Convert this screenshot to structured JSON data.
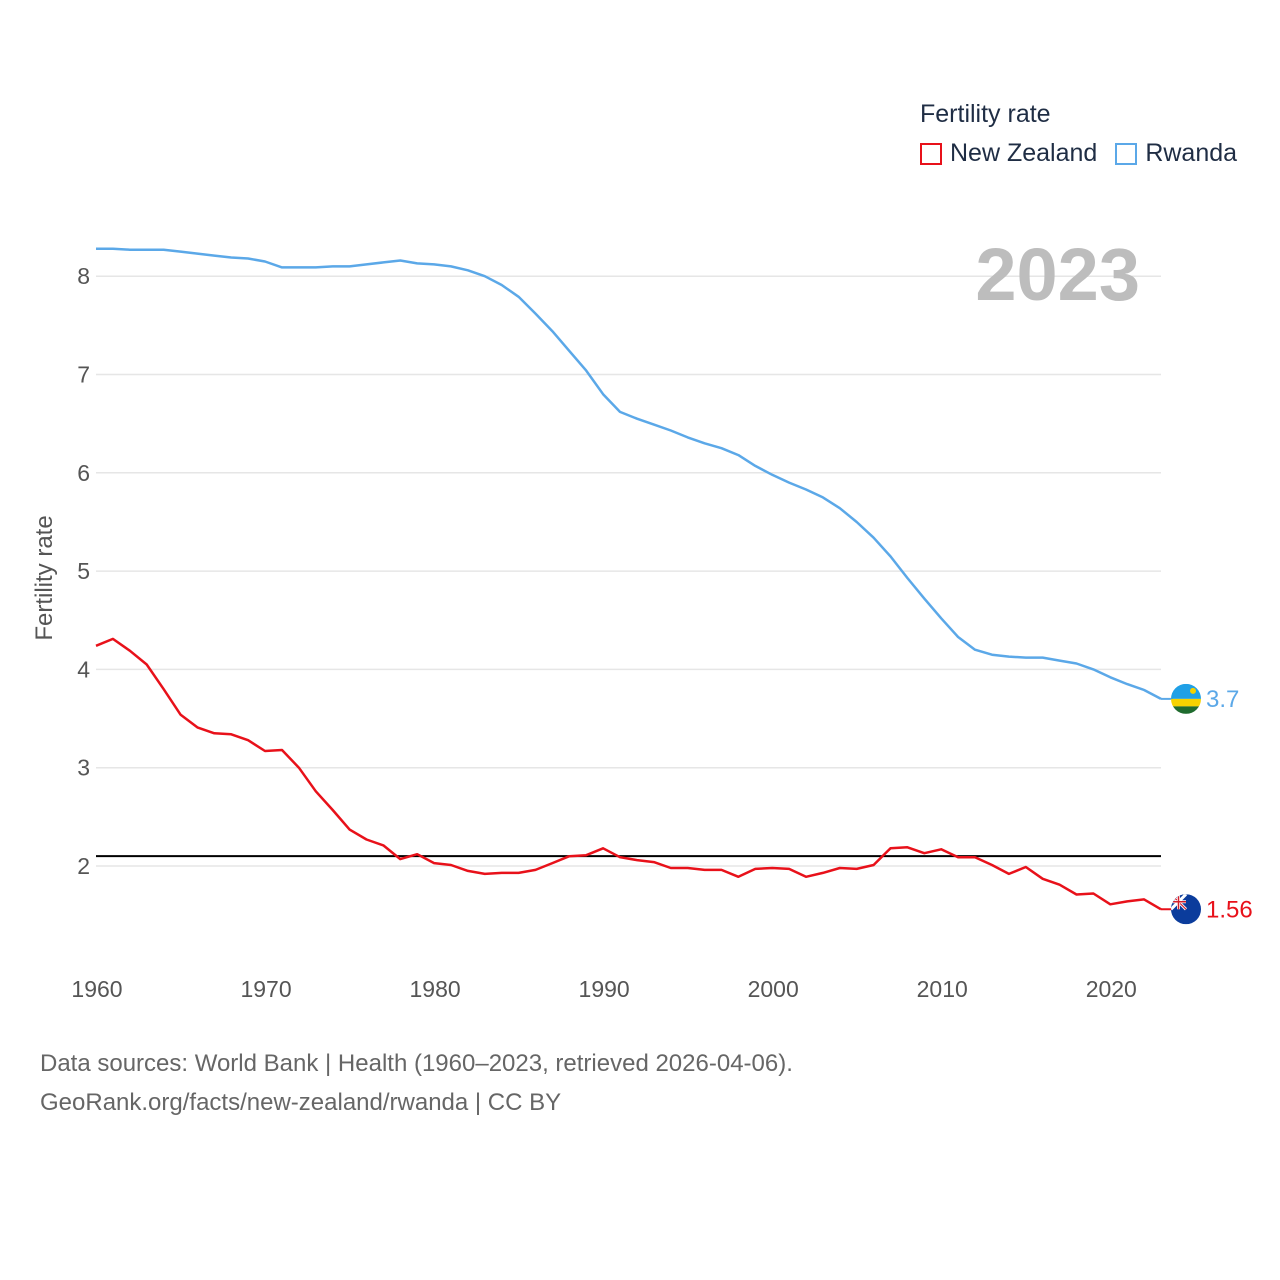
{
  "chart_data": {
    "type": "line",
    "title": "Fertility rate",
    "ylabel": "Fertility rate",
    "xlabel": "",
    "year_display": "2023",
    "xlim": [
      1960,
      2023
    ],
    "ylim": [
      1.1,
      8.6
    ],
    "x_ticks": [
      1960,
      1970,
      1980,
      1990,
      2000,
      2010,
      2020
    ],
    "y_ticks": [
      2,
      3,
      4,
      5,
      6,
      7,
      8
    ],
    "reference_line": 2.1,
    "x": [
      1960,
      1961,
      1962,
      1963,
      1964,
      1965,
      1966,
      1967,
      1968,
      1969,
      1970,
      1971,
      1972,
      1973,
      1974,
      1975,
      1976,
      1977,
      1978,
      1979,
      1980,
      1981,
      1982,
      1983,
      1984,
      1985,
      1986,
      1987,
      1988,
      1989,
      1990,
      1991,
      1992,
      1993,
      1994,
      1995,
      1996,
      1997,
      1998,
      1999,
      2000,
      2001,
      2002,
      2003,
      2004,
      2005,
      2006,
      2007,
      2008,
      2009,
      2010,
      2011,
      2012,
      2013,
      2014,
      2015,
      2016,
      2017,
      2018,
      2019,
      2020,
      2021,
      2022,
      2023
    ],
    "series": [
      {
        "name": "New Zealand",
        "color": "#e8111a",
        "end_label": "1.56",
        "values": [
          4.24,
          4.31,
          4.19,
          4.05,
          3.8,
          3.54,
          3.41,
          3.35,
          3.34,
          3.28,
          3.17,
          3.18,
          3.0,
          2.76,
          2.57,
          2.37,
          2.27,
          2.21,
          2.07,
          2.12,
          2.03,
          2.01,
          1.95,
          1.92,
          1.93,
          1.93,
          1.96,
          2.03,
          2.1,
          2.11,
          2.18,
          2.09,
          2.06,
          2.04,
          1.98,
          1.98,
          1.96,
          1.96,
          1.89,
          1.97,
          1.98,
          1.97,
          1.89,
          1.93,
          1.98,
          1.97,
          2.01,
          2.18,
          2.19,
          2.13,
          2.17,
          2.09,
          2.09,
          2.01,
          1.92,
          1.99,
          1.87,
          1.81,
          1.71,
          1.72,
          1.61,
          1.64,
          1.66,
          1.56
        ]
      },
      {
        "name": "Rwanda",
        "color": "#5ba8e8",
        "end_label": "3.7",
        "values": [
          8.28,
          8.28,
          8.27,
          8.27,
          8.27,
          8.25,
          8.23,
          8.21,
          8.19,
          8.18,
          8.15,
          8.09,
          8.09,
          8.09,
          8.1,
          8.1,
          8.12,
          8.14,
          8.16,
          8.13,
          8.12,
          8.1,
          8.06,
          8.0,
          7.91,
          7.79,
          7.62,
          7.44,
          7.24,
          7.04,
          6.8,
          6.62,
          6.55,
          6.49,
          6.43,
          6.36,
          6.3,
          6.25,
          6.18,
          6.07,
          5.98,
          5.9,
          5.83,
          5.75,
          5.64,
          5.5,
          5.34,
          5.15,
          4.93,
          4.72,
          4.52,
          4.33,
          4.2,
          4.15,
          4.13,
          4.12,
          4.12,
          4.09,
          4.06,
          4.0,
          3.92,
          3.85,
          3.79,
          3.7
        ]
      }
    ]
  },
  "legend": {
    "title": "Fertility rate",
    "items": [
      {
        "label": "New Zealand",
        "color": "#e8111a"
      },
      {
        "label": "Rwanda",
        "color": "#5ba8e8"
      }
    ]
  },
  "source": {
    "line1": "Data sources: World Bank | Health (1960–2023, retrieved 2026-04-06).",
    "line2": "GeoRank.org/facts/new-zealand/rwanda | CC BY"
  },
  "icons": {
    "new_zealand": "new-zealand-flag-icon",
    "rwanda": "rwanda-flag-icon"
  }
}
